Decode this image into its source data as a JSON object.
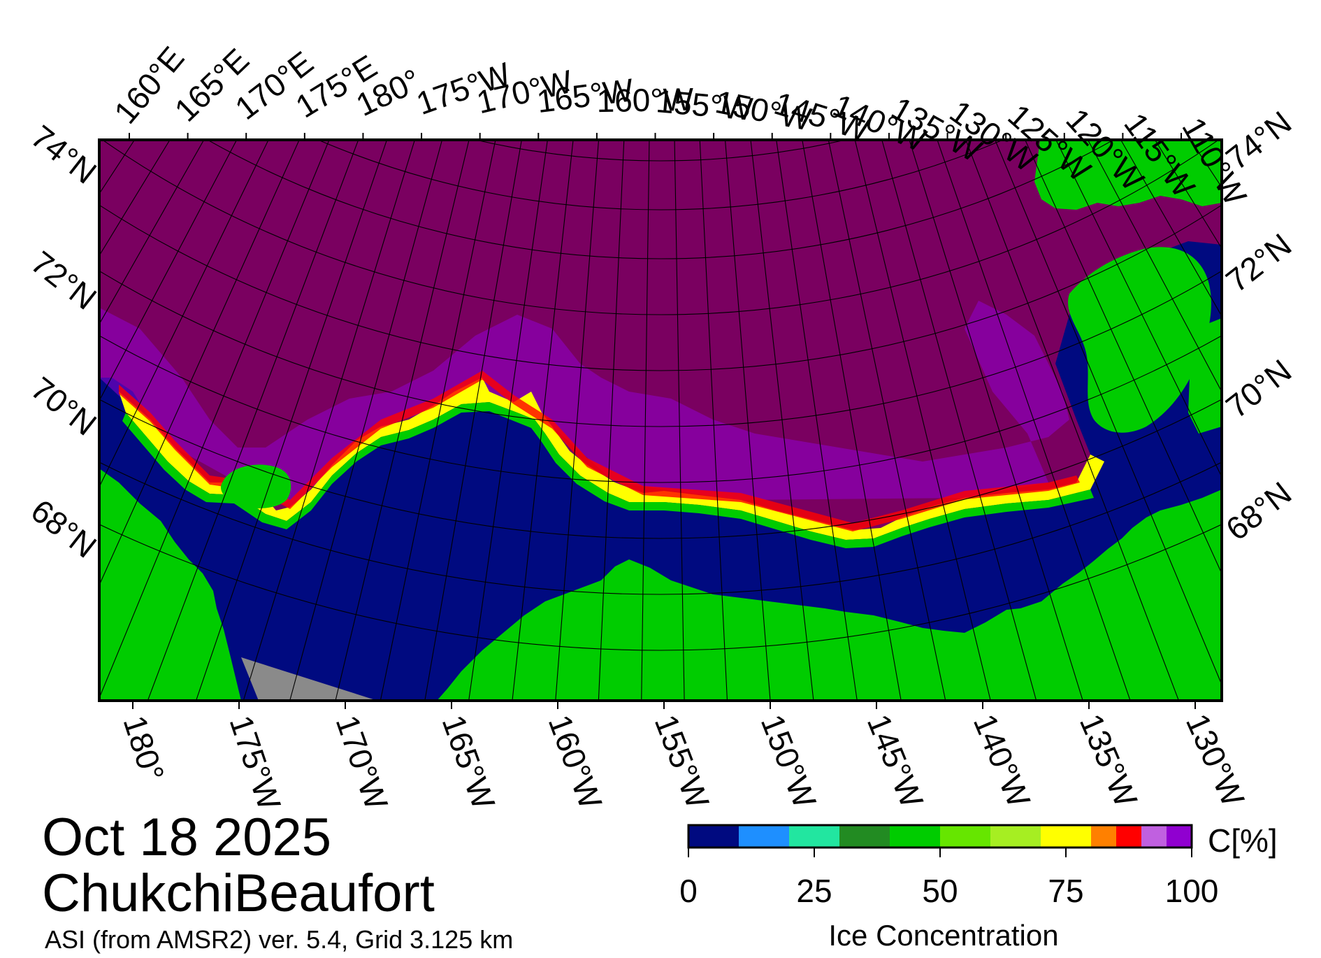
{
  "title": {
    "date": "Oct 18 2025",
    "region": "ChukchiBeaufort",
    "source": "ASI (from AMSR2) ver. 5.4,  Grid 3.125 km"
  },
  "map": {
    "top_lon_labels": [
      "160°E",
      "165°E",
      "170°E",
      "175°E",
      "180°",
      "175°W",
      "170°W",
      "165°W",
      "160°W",
      "155°W",
      "150°W",
      "145°W",
      "140°W",
      "135°W",
      "130°W",
      "125°W",
      "120°W",
      "115°W",
      "110°W"
    ],
    "bottom_lon_labels": [
      "180°",
      "175°W",
      "170°W",
      "165°W",
      "160°W",
      "155°W",
      "150°W",
      "145°W",
      "140°W",
      "135°W",
      "130°W"
    ],
    "lat_labels": [
      "74°N",
      "72°N",
      "70°N",
      "68°N"
    ],
    "colors": {
      "land": "#00cc00",
      "open_water": "#000a80",
      "no_data": "#8a8a8a",
      "ice_100": "#7a0060",
      "coast": "#222222"
    }
  },
  "colorbar": {
    "title": "Ice Concentration",
    "unit": "C[%]",
    "tick_labels": [
      "0",
      "25",
      "50",
      "75",
      "100"
    ],
    "colors": [
      "#000a80",
      "#1e8fff",
      "#22e6a0",
      "#228b22",
      "#00cc00",
      "#66e600",
      "#a6ee22",
      "#ffff00",
      "#ff8000",
      "#ff0000",
      "#c060e0",
      "#9000d0"
    ]
  }
}
